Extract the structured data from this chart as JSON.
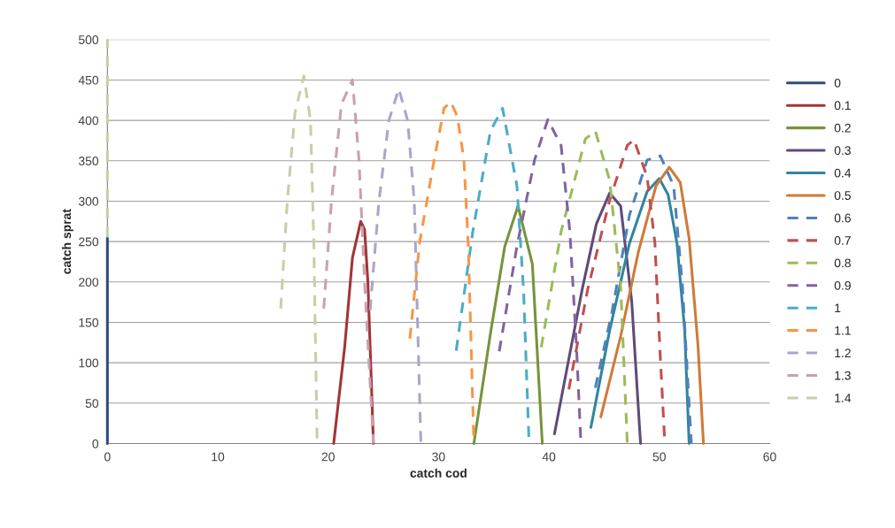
{
  "chart_data": {
    "type": "line",
    "xlabel": "catch cod",
    "ylabel": "catch sprat",
    "xlim": [
      0,
      60
    ],
    "ylim": [
      0,
      500
    ],
    "xticks": [
      0,
      10,
      20,
      30,
      40,
      50,
      60
    ],
    "yticks": [
      0,
      50,
      100,
      150,
      200,
      250,
      300,
      350,
      400,
      450,
      500
    ],
    "grid": "y",
    "legend": "right",
    "marker": "none",
    "series": [
      {
        "name": "0",
        "color": "#2c4d75",
        "line_style": "solid",
        "x": [
          0,
          0
        ],
        "values": [
          0,
          255
        ]
      },
      {
        "name": "0.1",
        "color": "#a23535",
        "line_style": "solid",
        "x": [
          20.5,
          21.5,
          22.2,
          22.95,
          23.3,
          23.6,
          24.1
        ],
        "values": [
          0,
          120,
          230,
          275,
          265,
          200,
          0
        ]
      },
      {
        "name": "0.2",
        "color": "#77933c",
        "line_style": "solid",
        "x": [
          33.2,
          34.7,
          36.0,
          37.2,
          38.5,
          39.4
        ],
        "values": [
          0,
          136,
          244,
          294,
          222,
          0
        ]
      },
      {
        "name": "0.3",
        "color": "#604a7b",
        "line_style": "solid",
        "x": [
          40.5,
          43.0,
          44.3,
          45.5,
          46.5,
          47.5,
          48.3
        ],
        "values": [
          12,
          190,
          272,
          310,
          294,
          176,
          0
        ]
      },
      {
        "name": "0.4",
        "color": "#31859c",
        "line_style": "solid",
        "x": [
          43.8,
          45.5,
          47.3,
          48.9,
          50.0,
          50.8,
          51.6,
          52.3,
          52.7
        ],
        "values": [
          20,
          140,
          248,
          312,
          328,
          308,
          248,
          140,
          0
        ]
      },
      {
        "name": "0.5",
        "color": "#d07a38",
        "line_style": "solid",
        "x": [
          44.7,
          46.5,
          48.1,
          49.7,
          50.9,
          51.9,
          52.7,
          53.5,
          54.0
        ],
        "values": [
          33,
          133,
          237,
          319,
          342,
          323,
          254,
          122,
          0
        ]
      },
      {
        "name": "0.6",
        "color": "#4f81bd",
        "line_style": "dashed",
        "x": [
          44.2,
          45.7,
          47.3,
          48.9,
          50.1,
          51.3,
          52.1,
          52.9
        ],
        "values": [
          69,
          162,
          283,
          351,
          356,
          319,
          194,
          0
        ]
      },
      {
        "name": "0.7",
        "color": "#c0504d",
        "line_style": "dashed",
        "x": [
          41.8,
          43.5,
          45.5,
          47.1,
          47.7,
          48.9,
          49.6,
          50.1,
          50.5
        ],
        "values": [
          67,
          190,
          301,
          369,
          376,
          330,
          248,
          104,
          0
        ]
      },
      {
        "name": "0.8",
        "color": "#9bbb59",
        "line_style": "dashed",
        "x": [
          39.3,
          41.1,
          43.3,
          44.2,
          45.5,
          46.5,
          47.1
        ],
        "values": [
          119,
          262,
          377,
          387,
          326,
          194,
          0
        ]
      },
      {
        "name": "0.9",
        "color": "#8064a2",
        "line_style": "dashed",
        "x": [
          35.5,
          37.1,
          38.7,
          39.9,
          41.1,
          41.9,
          42.5,
          42.9
        ],
        "values": [
          114,
          244,
          351,
          401,
          369,
          262,
          119,
          0
        ]
      },
      {
        "name": "1",
        "color": "#4bacc6",
        "line_style": "dashed",
        "x": [
          31.6,
          33.1,
          34.7,
          35.8,
          37.1,
          37.7,
          38.2
        ],
        "values": [
          115,
          262,
          387,
          415,
          319,
          190,
          0
        ]
      },
      {
        "name": "1.1",
        "color": "#f79646",
        "line_style": "dashed",
        "x": [
          27.4,
          28.3,
          29.6,
          30.5,
          31.1,
          31.7,
          32.3,
          32.7,
          33.2
        ],
        "values": [
          130,
          250,
          351,
          415,
          423,
          405,
          351,
          244,
          0
        ]
      },
      {
        "name": "1.2",
        "color": "#aaa6c8",
        "line_style": "dashed",
        "x": [
          23.8,
          24.6,
          25.5,
          26.4,
          27.2,
          27.8,
          28.1,
          28.4
        ],
        "values": [
          165,
          300,
          400,
          439,
          400,
          300,
          150,
          0
        ]
      },
      {
        "name": "1.3",
        "color": "#c9a0b0",
        "line_style": "dashed",
        "x": [
          19.6,
          20.3,
          21.2,
          22.2,
          22.8,
          23.3,
          24.1
        ],
        "values": [
          167,
          300,
          420,
          450,
          350,
          200,
          0
        ]
      },
      {
        "name": "1.4",
        "color": "#c4d0a8",
        "line_style": "dashed",
        "x": [
          0,
          0,
          null,
          15.7,
          16.3,
          17.0,
          17.8,
          18.4,
          18.7,
          19.0
        ],
        "values": [
          255,
          500,
          null,
          167,
          300,
          410,
          455,
          400,
          250,
          0
        ]
      }
    ]
  }
}
